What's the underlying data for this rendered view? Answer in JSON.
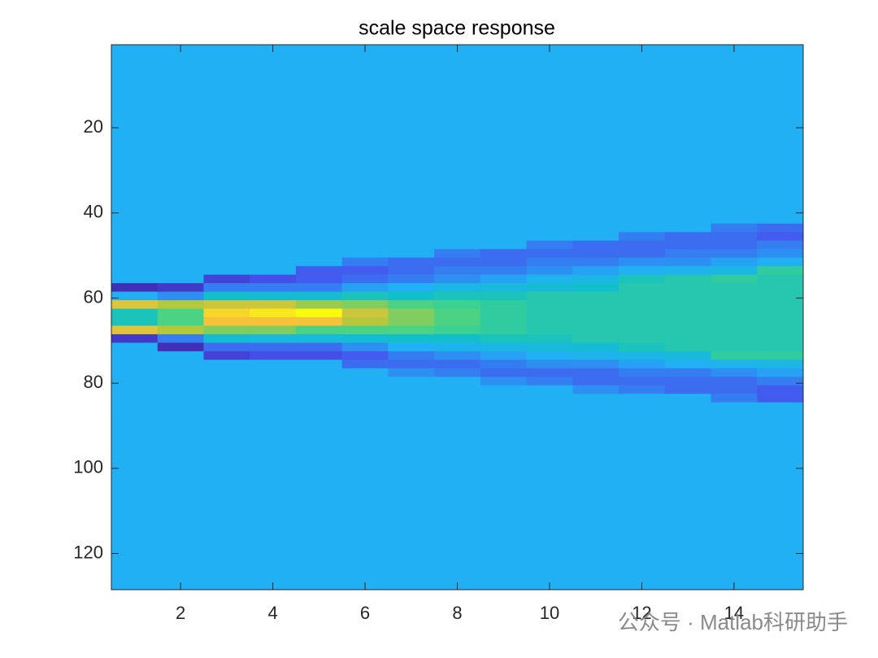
{
  "chart_data": {
    "type": "heatmap",
    "title": "scale space response",
    "x": [
      1,
      2,
      3,
      4,
      5,
      6,
      7,
      8,
      9,
      10,
      11,
      12,
      13,
      14,
      15
    ],
    "xlim": [
      0.5,
      15.5
    ],
    "xticks": [
      2,
      4,
      6,
      8,
      10,
      12,
      14
    ],
    "ylim": [
      0.5,
      128.5
    ],
    "yticks": [
      20,
      40,
      60,
      80,
      100,
      120
    ],
    "y_reversed": true,
    "ybins": [
      0.5,
      42.5,
      44.5,
      46.5,
      48.5,
      50.5,
      52.5,
      54.5,
      56.5,
      58.5,
      60.5,
      62.5,
      64.5,
      66.5,
      68.5,
      70.5,
      72.5,
      74.5,
      76.5,
      78.5,
      80.5,
      82.5,
      84.5,
      86.5,
      128.5
    ],
    "clim": [
      -1,
      2
    ],
    "colormap": [
      "#3e26a8",
      "#4653ee",
      "#21b0f5",
      "#12bec9",
      "#3fd38c",
      "#b5c83b",
      "#f6c23a",
      "#f9fb0e"
    ],
    "colormap_stops": [
      0,
      0.15,
      0.33,
      0.5,
      0.65,
      0.8,
      0.9,
      1
    ],
    "z": [
      [
        0,
        0,
        0,
        0,
        0,
        0,
        0,
        0,
        0,
        0,
        0,
        0,
        0,
        0,
        0
      ],
      [
        0,
        0,
        0,
        0,
        0,
        0,
        0,
        0,
        0,
        0,
        0,
        0,
        0,
        -0.3,
        -0.4
      ],
      [
        0,
        0,
        0,
        0,
        0,
        0,
        0,
        0,
        0,
        0,
        0,
        -0.3,
        -0.4,
        -0.4,
        -0.5
      ],
      [
        0,
        0,
        0,
        0,
        0,
        0,
        0,
        0,
        0,
        -0.3,
        -0.4,
        -0.4,
        -0.4,
        -0.4,
        -0.3
      ],
      [
        0,
        0,
        0,
        0,
        0,
        0,
        0,
        -0.3,
        -0.4,
        -0.4,
        -0.4,
        -0.4,
        -0.3,
        -0.3,
        -0.2
      ],
      [
        0,
        0,
        0,
        0,
        0,
        -0.3,
        -0.4,
        -0.4,
        -0.4,
        -0.3,
        -0.3,
        -0.2,
        -0.2,
        -0.1,
        0
      ],
      [
        0,
        0,
        0,
        0,
        -0.5,
        -0.5,
        -0.4,
        -0.3,
        -0.3,
        -0.2,
        -0.1,
        0,
        0.1,
        0.2,
        0.8
      ],
      [
        0,
        0,
        -0.7,
        -0.6,
        -0.5,
        -0.4,
        -0.3,
        -0.2,
        -0.1,
        0.1,
        0.2,
        0.6,
        0.7,
        0.8,
        0.7
      ],
      [
        -0.9,
        -0.8,
        -0.3,
        -0.3,
        -0.3,
        -0.1,
        0,
        0.2,
        0.3,
        0.4,
        0.5,
        0.7,
        0.7,
        0.7,
        0.7
      ],
      [
        0,
        -0.2,
        0.5,
        0.4,
        0.4,
        0.6,
        0.5,
        0.6,
        0.6,
        0.7,
        0.7,
        0.7,
        0.7,
        0.7,
        0.7
      ],
      [
        1.6,
        1.4,
        1.5,
        1.5,
        1.3,
        1.2,
        1.0,
        0.9,
        0.8,
        0.7,
        0.7,
        0.7,
        0.7,
        0.7,
        0.7
      ],
      [
        0.6,
        1.0,
        1.8,
        1.9,
        2.0,
        1.5,
        1.2,
        1.0,
        0.8,
        0.7,
        0.7,
        0.7,
        0.7,
        0.7,
        0.7
      ],
      [
        0.6,
        1.0,
        1.7,
        1.7,
        1.7,
        1.4,
        1.2,
        1.0,
        0.8,
        0.7,
        0.7,
        0.7,
        0.7,
        0.7,
        0.7
      ],
      [
        1.6,
        1.4,
        1.2,
        1.2,
        1.0,
        1.0,
        1.0,
        0.9,
        0.8,
        0.7,
        0.7,
        0.7,
        0.7,
        0.7,
        0.7
      ],
      [
        -0.8,
        -0.3,
        0.4,
        0.3,
        0.3,
        0.4,
        0.5,
        0.5,
        0.6,
        0.6,
        0.7,
        0.7,
        0.7,
        0.7,
        0.7
      ],
      [
        0,
        -0.9,
        -0.4,
        -0.4,
        -0.4,
        -0.2,
        0,
        0.1,
        0.2,
        0.3,
        0.4,
        0.6,
        0.7,
        0.7,
        0.7
      ],
      [
        0,
        0,
        -0.7,
        -0.6,
        -0.6,
        -0.5,
        -0.3,
        -0.2,
        -0.1,
        0,
        0.1,
        0.2,
        0.3,
        0.8,
        0.8
      ],
      [
        0,
        0,
        0,
        0,
        0,
        -0.4,
        -0.4,
        -0.4,
        -0.3,
        -0.2,
        -0.2,
        -0.1,
        0,
        0.1,
        0.2
      ],
      [
        0,
        0,
        0,
        0,
        0,
        0,
        -0.2,
        -0.3,
        -0.4,
        -0.4,
        -0.4,
        -0.3,
        -0.3,
        -0.2,
        -0.1
      ],
      [
        0,
        0,
        0,
        0,
        0,
        0,
        0,
        0,
        -0.2,
        -0.3,
        -0.4,
        -0.4,
        -0.4,
        -0.4,
        -0.3
      ],
      [
        0,
        0,
        0,
        0,
        0,
        0,
        0,
        0,
        0,
        0,
        -0.2,
        -0.3,
        -0.4,
        -0.4,
        -0.5
      ],
      [
        0,
        0,
        0,
        0,
        0,
        0,
        0,
        0,
        0,
        0,
        0,
        0,
        0,
        -0.3,
        -0.5
      ],
      [
        0,
        0,
        0,
        0,
        0,
        0,
        0,
        0,
        0,
        0,
        0,
        0,
        0,
        0,
        0
      ],
      [
        0,
        0,
        0,
        0,
        0,
        0,
        0,
        0,
        0,
        0,
        0,
        0,
        0,
        0,
        0
      ]
    ]
  },
  "watermark": "公众号 · Matlab科研助手"
}
